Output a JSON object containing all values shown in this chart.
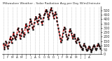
{
  "title": "Milwaukee Weather - Solar Radiation Avg per Day W/m2/minute",
  "background_color": "#ffffff",
  "line_color": "#dd0000",
  "line_style": "--",
  "line_width": 0.8,
  "marker": "s",
  "marker_color": "#000000",
  "marker_size": 1.2,
  "grid_color": "#aaaaaa",
  "grid_style": ":",
  "ylim": [
    0,
    550
  ],
  "yticks": [
    0,
    50,
    100,
    150,
    200,
    250,
    300,
    350,
    400,
    450,
    500
  ],
  "ytick_labels": [
    "0",
    "50",
    "100",
    "150",
    "200",
    "250",
    "300",
    "350",
    "400",
    "450",
    "500"
  ],
  "values": [
    120,
    80,
    60,
    110,
    150,
    130,
    90,
    70,
    100,
    140,
    170,
    200,
    160,
    130,
    180,
    220,
    250,
    210,
    190,
    170,
    200,
    230,
    280,
    300,
    260,
    220,
    180,
    210,
    250,
    290,
    270,
    240,
    200,
    230,
    310,
    350,
    320,
    280,
    250,
    290,
    330,
    370,
    400,
    380,
    350,
    310,
    280,
    320,
    360,
    400,
    430,
    410,
    380,
    350,
    390,
    430,
    460,
    440,
    410,
    370,
    340,
    380,
    420,
    450,
    470,
    490,
    510,
    490,
    460,
    430,
    400,
    440,
    480,
    510,
    530,
    500,
    470,
    440,
    410,
    450,
    480,
    460,
    420,
    380,
    340,
    300,
    260,
    220,
    180,
    140,
    160,
    200,
    240,
    280,
    310,
    290,
    260,
    230,
    200,
    170,
    190,
    220,
    260,
    290,
    270,
    240,
    210,
    180,
    200,
    230,
    210,
    180,
    150,
    130,
    160,
    190,
    170,
    140,
    110,
    90,
    80,
    60,
    50,
    70,
    100,
    120,
    100,
    80,
    60,
    40,
    50,
    70,
    90,
    80,
    60,
    40,
    30,
    50,
    70,
    90,
    110,
    90,
    70,
    50,
    70,
    100,
    120,
    110,
    90,
    70
  ],
  "x_labels": [
    "J",
    "F",
    "M",
    "A",
    "M",
    "J",
    "J",
    "A",
    "S",
    "O",
    "N",
    "D",
    "J",
    "F",
    "M",
    "A",
    "M",
    "J",
    "J",
    "A"
  ],
  "num_xtick_lines": 20
}
